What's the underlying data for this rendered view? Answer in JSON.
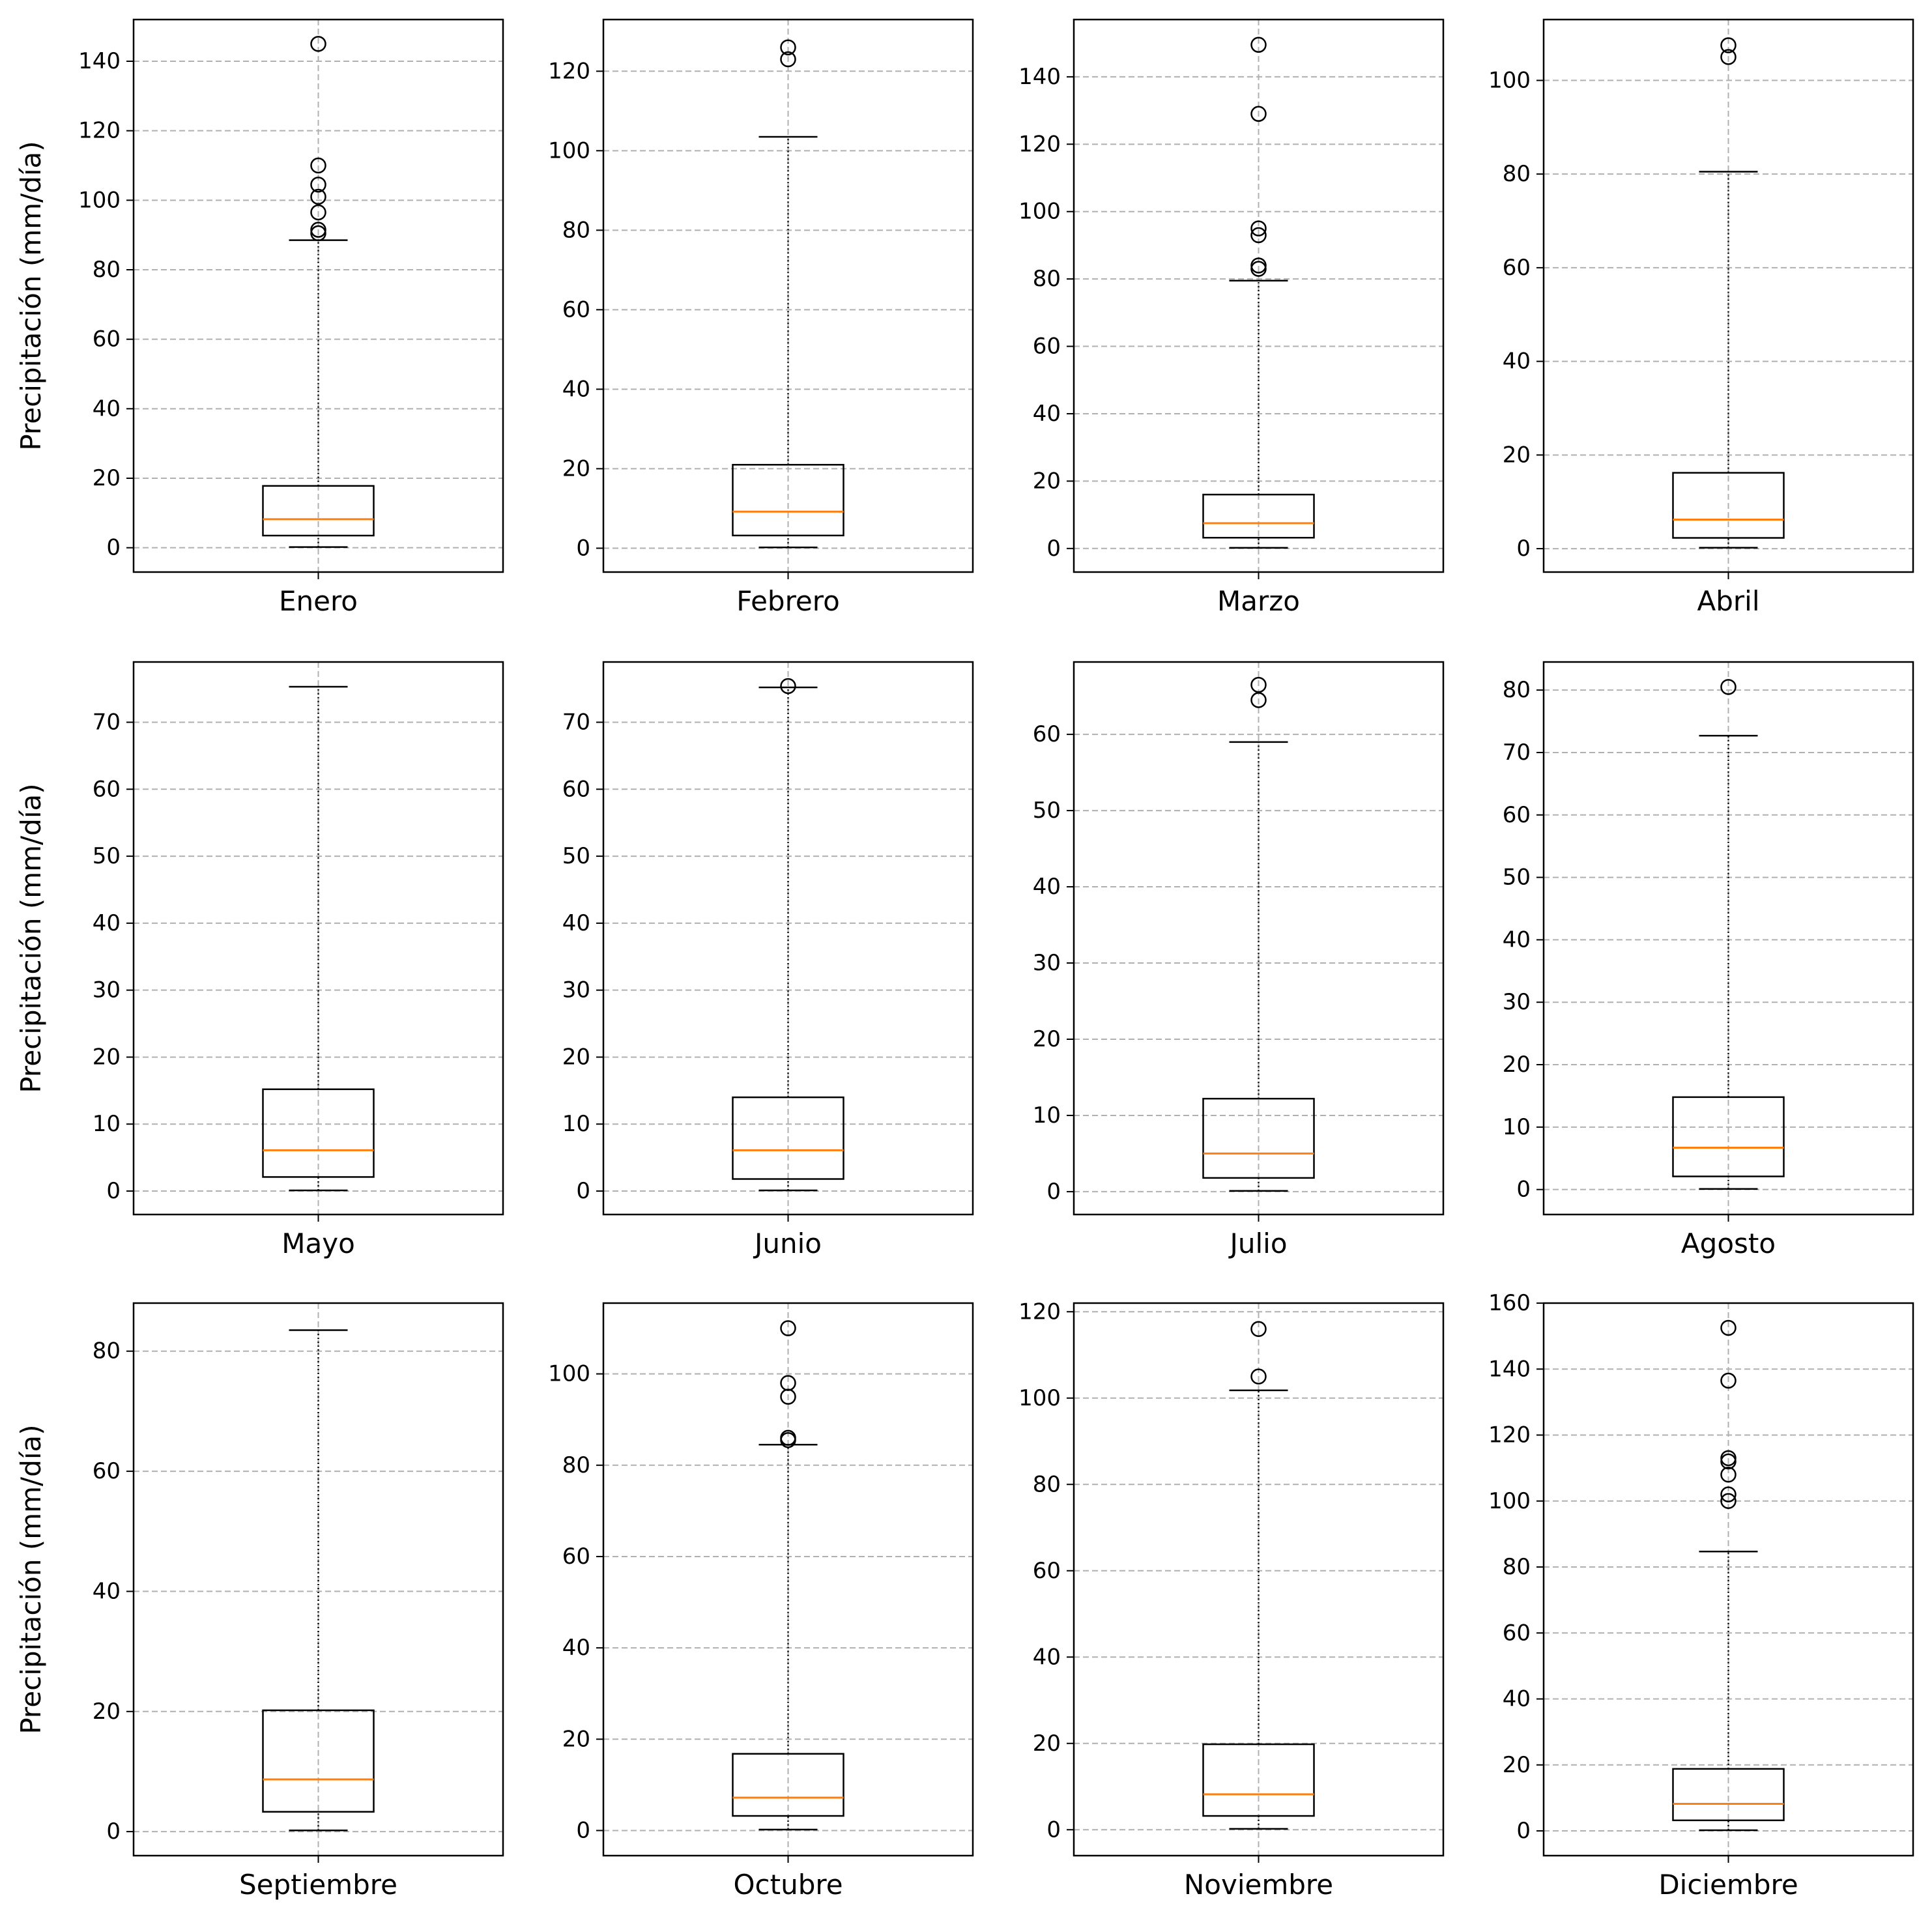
{
  "ylabel": "Precipitación (mm/día)",
  "colors": {
    "median": "#ff7f0e",
    "box": "#000000",
    "grid": "#b0b0b0",
    "flier": "#000000"
  },
  "chart_data": [
    {
      "type": "boxplot",
      "category": "Enero",
      "ylabel": "Precipitación (mm/día)",
      "ylim": [
        -7,
        152
      ],
      "yticks": [
        0,
        20,
        40,
        60,
        80,
        100,
        120,
        140
      ],
      "grid": true,
      "whisker_low": 0.2,
      "q1": 3.5,
      "median": 8.2,
      "q3": 17.8,
      "whisker_high": 88.5,
      "outliers": [
        90.5,
        91.5,
        96.5,
        101,
        104.5,
        110,
        145
      ]
    },
    {
      "type": "boxplot",
      "category": "Febrero",
      "ylabel": "",
      "ylim": [
        -6,
        133
      ],
      "yticks": [
        0,
        20,
        40,
        60,
        80,
        100,
        120
      ],
      "grid": true,
      "whisker_low": 0.2,
      "q1": 3.2,
      "median": 9.2,
      "q3": 21,
      "whisker_high": 103.5,
      "outliers": [
        123,
        126
      ]
    },
    {
      "type": "boxplot",
      "category": "Marzo",
      "ylabel": "",
      "ylim": [
        -7,
        157
      ],
      "yticks": [
        0,
        20,
        40,
        60,
        80,
        100,
        120,
        140
      ],
      "grid": true,
      "whisker_low": 0.2,
      "q1": 3.2,
      "median": 7.5,
      "q3": 16,
      "whisker_high": 79.5,
      "outliers": [
        83,
        84,
        93,
        95,
        129,
        149.5
      ]
    },
    {
      "type": "boxplot",
      "category": "Abril",
      "ylabel": "",
      "ylim": [
        -5,
        113
      ],
      "yticks": [
        0,
        20,
        40,
        60,
        80,
        100
      ],
      "grid": true,
      "whisker_low": 0.2,
      "q1": 2.3,
      "median": 6.2,
      "q3": 16.2,
      "whisker_high": 80.5,
      "outliers": [
        105,
        107.5
      ]
    },
    {
      "type": "boxplot",
      "category": "Mayo",
      "ylabel": "Precipitación (mm/día)",
      "ylim": [
        -3.5,
        79
      ],
      "yticks": [
        0,
        10,
        20,
        30,
        40,
        50,
        60,
        70
      ],
      "grid": true,
      "whisker_low": 0.1,
      "q1": 2.1,
      "median": 6.1,
      "q3": 15.2,
      "whisker_high": 75.3,
      "outliers": []
    },
    {
      "type": "boxplot",
      "category": "Junio",
      "ylabel": "",
      "ylim": [
        -3.5,
        79
      ],
      "yticks": [
        0,
        10,
        20,
        30,
        40,
        50,
        60,
        70
      ],
      "grid": true,
      "whisker_low": 0.1,
      "q1": 1.8,
      "median": 6.1,
      "q3": 14,
      "whisker_high": 75.2,
      "outliers": [
        75.4
      ]
    },
    {
      "type": "boxplot",
      "category": "Julio",
      "ylabel": "",
      "ylim": [
        -3,
        69.5
      ],
      "yticks": [
        0,
        10,
        20,
        30,
        40,
        50,
        60
      ],
      "grid": true,
      "whisker_low": 0.1,
      "q1": 1.8,
      "median": 5,
      "q3": 12.2,
      "whisker_high": 59,
      "outliers": [
        64.5,
        66.5
      ]
    },
    {
      "type": "boxplot",
      "category": "Agosto",
      "ylabel": "",
      "ylim": [
        -4,
        84.5
      ],
      "yticks": [
        0,
        10,
        20,
        30,
        40,
        50,
        60,
        70,
        80
      ],
      "grid": true,
      "whisker_low": 0.1,
      "q1": 2.1,
      "median": 6.7,
      "q3": 14.8,
      "whisker_high": 72.7,
      "outliers": [
        80.5
      ]
    },
    {
      "type": "boxplot",
      "category": "Septiembre",
      "ylabel": "Precipitación (mm/día)",
      "ylim": [
        -4,
        88
      ],
      "yticks": [
        0,
        20,
        40,
        60,
        80
      ],
      "grid": true,
      "whisker_low": 0.2,
      "q1": 3.3,
      "median": 8.7,
      "q3": 20.2,
      "whisker_high": 83.5,
      "outliers": []
    },
    {
      "type": "boxplot",
      "category": "Octubre",
      "ylabel": "",
      "ylim": [
        -5.5,
        115.5
      ],
      "yticks": [
        0,
        20,
        40,
        60,
        80,
        100
      ],
      "grid": true,
      "whisker_low": 0.2,
      "q1": 3.2,
      "median": 7.2,
      "q3": 16.8,
      "whisker_high": 84.5,
      "outliers": [
        85.5,
        86,
        95,
        98,
        110
      ]
    },
    {
      "type": "boxplot",
      "category": "Noviembre",
      "ylabel": "",
      "ylim": [
        -6,
        122
      ],
      "yticks": [
        0,
        20,
        40,
        60,
        80,
        100,
        120
      ],
      "grid": true,
      "whisker_low": 0.2,
      "q1": 3.2,
      "median": 8.2,
      "q3": 19.8,
      "whisker_high": 101.8,
      "outliers": [
        105,
        116
      ]
    },
    {
      "type": "boxplot",
      "category": "Diciembre",
      "ylabel": "",
      "ylim": [
        -7.5,
        160
      ],
      "yticks": [
        0,
        20,
        40,
        60,
        80,
        100,
        120,
        140,
        160
      ],
      "grid": true,
      "whisker_low": 0.2,
      "q1": 3.2,
      "median": 8.2,
      "q3": 18.8,
      "whisker_high": 84.7,
      "outliers": [
        100,
        102,
        108,
        112,
        113,
        136.5,
        152.5
      ]
    }
  ]
}
